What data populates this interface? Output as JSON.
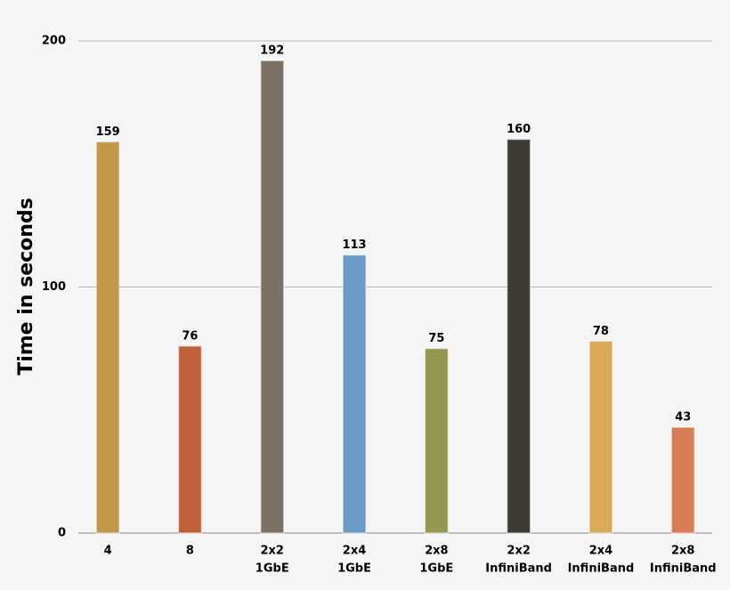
{
  "chart_data": {
    "type": "bar",
    "y_label": "Time in seconds",
    "categories": [
      [
        "4"
      ],
      [
        "8"
      ],
      [
        "2x2",
        "1GbE"
      ],
      [
        "2x4",
        "1GbE"
      ],
      [
        "2x8",
        "1GbE"
      ],
      [
        "2x2",
        "InfiniBand"
      ],
      [
        "2x4",
        "InfiniBand"
      ],
      [
        "2x8",
        "InfiniBand"
      ]
    ],
    "values": [
      159,
      76,
      192,
      113,
      75,
      160,
      78,
      43
    ],
    "colors": [
      "#c4984a",
      "#c0603a",
      "#7a7264",
      "#6c9bc8",
      "#959650",
      "#3d3a33",
      "#d9aa5a",
      "#d87e56"
    ],
    "ylim": [
      0,
      200
    ],
    "yticks": [
      0,
      100,
      200
    ],
    "grid": true
  }
}
